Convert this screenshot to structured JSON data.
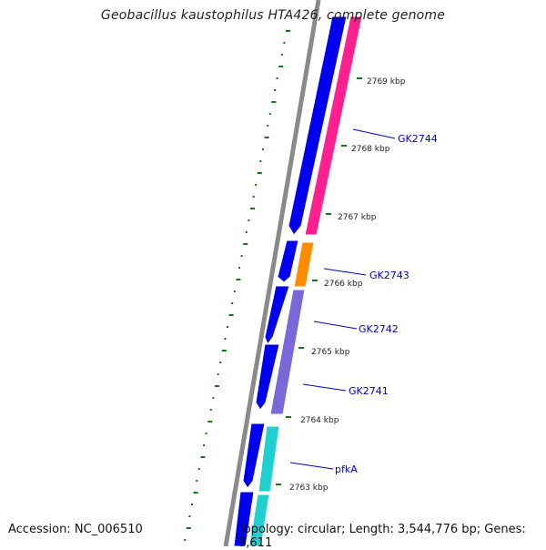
{
  "map": {
    "title": "Geobacillus kaustophilus HTA426, complete genome",
    "accession_label": "Accession: NC_006510",
    "summary_label": "Topology: circular; Length: 3,544,776 bp; Genes: 3,611",
    "colors": {
      "backbone": "#8a8a8a",
      "forward_cds": "#0000ee",
      "gc_tick": "#127a12",
      "label": "#0000cc",
      "pink_cds": "#ff1f8e",
      "orange_cds": "#ff8c00",
      "purple_cds": "#7b68d8",
      "cyan_cds": "#20d0d0"
    },
    "scale_labels": [
      "2769 kbp",
      "2768 kbp",
      "2767 kbp",
      "2766 kbp",
      "2765 kbp",
      "2764 kbp",
      "2763 kbp"
    ],
    "gene_labels": [
      "GK2744",
      "GK2743",
      "GK2742",
      "GK2741",
      "pfkA"
    ]
  }
}
